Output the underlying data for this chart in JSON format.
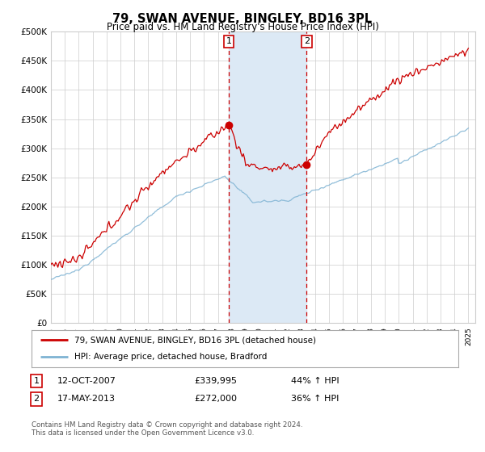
{
  "title": "79, SWAN AVENUE, BINGLEY, BD16 3PL",
  "subtitle": "Price paid vs. HM Land Registry's House Price Index (HPI)",
  "legend_line1": "79, SWAN AVENUE, BINGLEY, BD16 3PL (detached house)",
  "legend_line2": "HPI: Average price, detached house, Bradford",
  "table_row1": [
    "1",
    "12-OCT-2007",
    "£339,995",
    "44% ↑ HPI"
  ],
  "table_row2": [
    "2",
    "17-MAY-2013",
    "£272,000",
    "36% ↑ HPI"
  ],
  "footnote": "Contains HM Land Registry data © Crown copyright and database right 2024.\nThis data is licensed under the Open Government Licence v3.0.",
  "vline1_year": 2007.79,
  "vline2_year": 2013.38,
  "marker1_y": 339995,
  "marker2_y": 272000,
  "shade_color": "#dce9f5",
  "vline_color": "#cc0000",
  "red_line_color": "#cc0000",
  "blue_line_color": "#7fb3d3",
  "marker_color": "#cc0000",
  "ylim": [
    0,
    500000
  ],
  "yticks": [
    0,
    50000,
    100000,
    150000,
    200000,
    250000,
    300000,
    350000,
    400000,
    450000,
    500000
  ],
  "xlim_left": 1995,
  "xlim_right": 2025.5,
  "background_color": "#ffffff",
  "grid_color": "#cccccc"
}
